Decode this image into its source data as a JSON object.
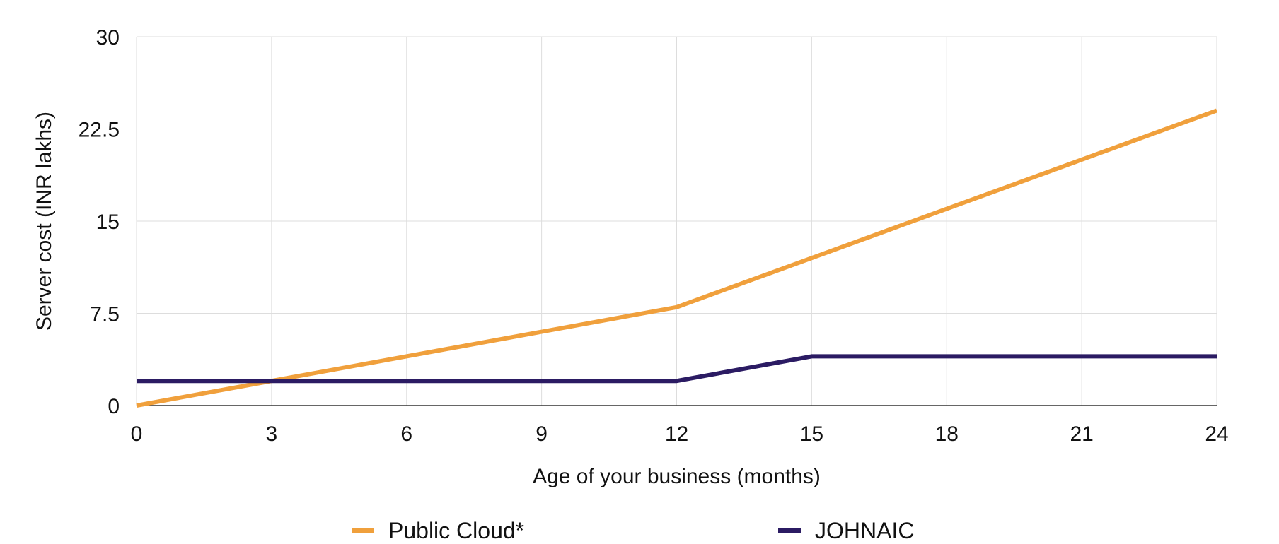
{
  "chart_data": {
    "type": "line",
    "title": "",
    "xlabel": "Age of your business (months)",
    "ylabel": "Server cost (INR lakhs)",
    "xlim": [
      0,
      24
    ],
    "ylim": [
      0,
      30
    ],
    "x_ticks": [
      "0",
      "3",
      "6",
      "9",
      "12",
      "15",
      "18",
      "21",
      "24"
    ],
    "y_ticks": [
      "0",
      "7.5",
      "15",
      "22.5",
      "30"
    ],
    "grid": true,
    "legend_position": "bottom",
    "series": [
      {
        "name": "Public Cloud*",
        "color": "#F0A03C",
        "x": [
          0,
          12,
          24
        ],
        "y": [
          0,
          8,
          24
        ]
      },
      {
        "name": "JOHNAIC",
        "color": "#2B1B63",
        "x": [
          0,
          12,
          15,
          24
        ],
        "y": [
          2,
          2,
          4,
          4
        ]
      }
    ]
  }
}
